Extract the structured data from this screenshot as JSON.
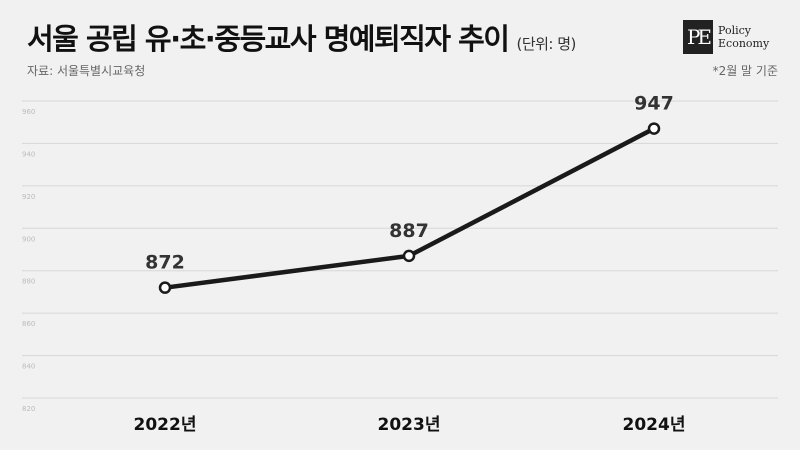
{
  "header": {
    "title": "서울 공립 유·초·중등교사 명예퇴직자 추이",
    "unit": "(단위: 명)",
    "source": "자료: 서울특별시교육청",
    "note": "*2월 말 기준"
  },
  "logo": {
    "mark": "PE",
    "line1": "Policy",
    "line2": "Economy"
  },
  "colors": {
    "line": "#1a1a1a",
    "grid": "#d7d7d7",
    "background": "#f1f1f1"
  },
  "chart_data": {
    "type": "line",
    "categories": [
      "2022년",
      "2023년",
      "2024년"
    ],
    "series": [
      {
        "values": [
          872,
          887,
          947
        ]
      }
    ],
    "data_labels": [
      "872",
      "887",
      "947"
    ],
    "yticks": [
      "960",
      "940",
      "920",
      "900",
      "880",
      "860",
      "840",
      "820"
    ],
    "ylim": [
      820,
      960
    ],
    "grid": true,
    "legend": "none"
  }
}
